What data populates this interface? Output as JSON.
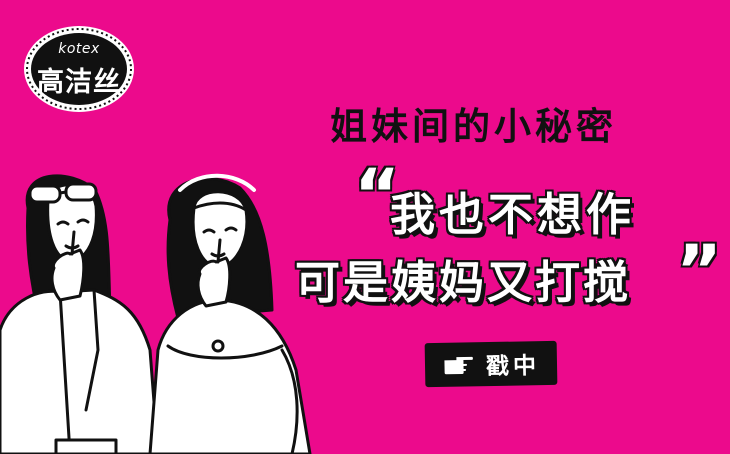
{
  "logo": {
    "brand_en": "kotex",
    "brand_cn": "高洁丝"
  },
  "headline": {
    "subtitle": "姐妹间的小秘密",
    "quote_open": "“",
    "line1": "我也不想作",
    "line2": "可是姨妈又打搅",
    "quote_close": "”"
  },
  "cta": {
    "label": "戳中",
    "icon": "pointing-hand-icon"
  },
  "colors": {
    "background": "#ec0a8c",
    "ink": "#111111",
    "white": "#ffffff"
  }
}
